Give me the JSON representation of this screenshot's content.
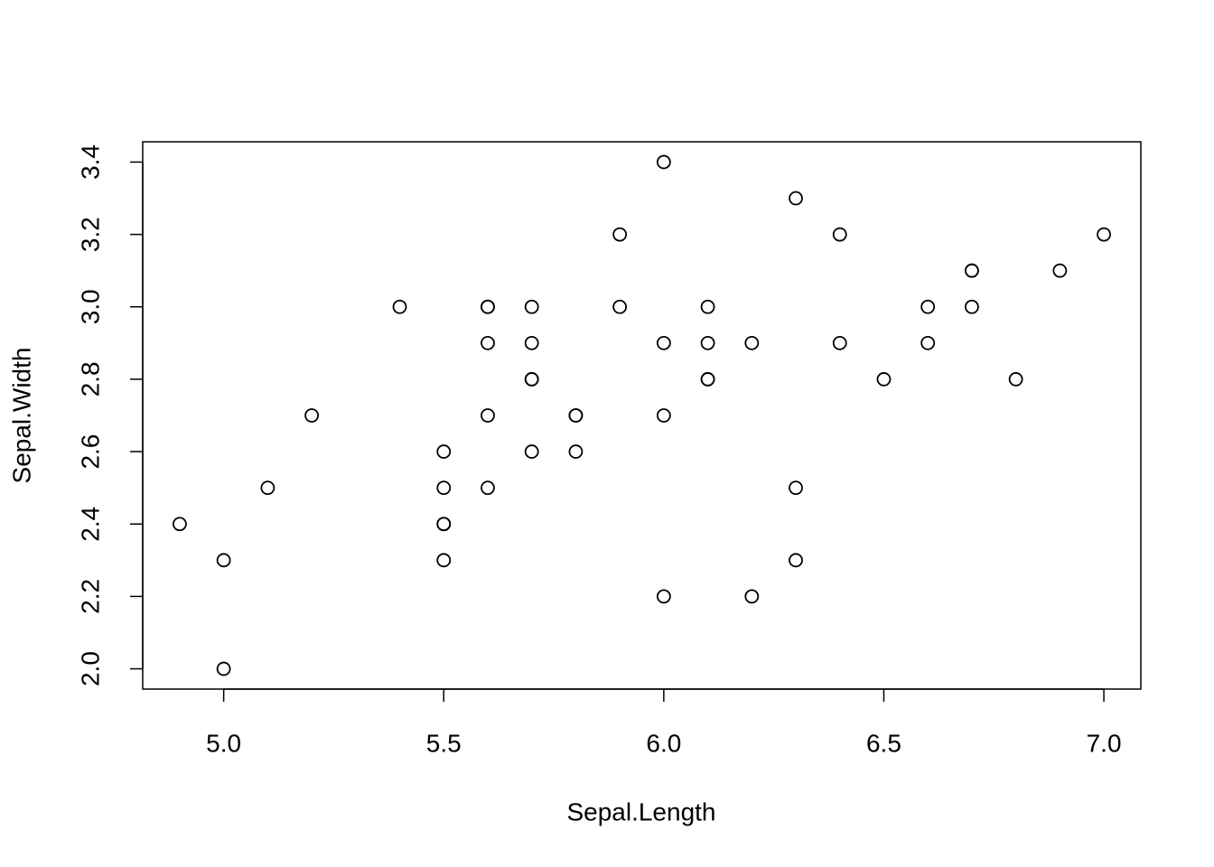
{
  "chart_data": {
    "type": "scatter",
    "x_label": "Sepal.Length",
    "y_label": "Sepal.Width",
    "x": [
      7.0,
      6.4,
      6.9,
      5.5,
      6.5,
      5.7,
      6.3,
      4.9,
      6.6,
      5.2,
      5.0,
      5.9,
      6.0,
      6.1,
      5.6,
      6.7,
      5.6,
      5.8,
      6.2,
      5.6,
      5.9,
      6.1,
      6.3,
      6.1,
      6.4,
      6.6,
      6.8,
      6.7,
      6.0,
      5.7,
      5.5,
      5.5,
      5.8,
      6.0,
      5.4,
      6.0,
      6.7,
      6.3,
      5.6,
      5.5,
      5.5,
      6.1,
      5.8,
      5.0,
      5.6,
      5.7,
      5.7,
      6.2,
      5.1,
      5.7
    ],
    "series": [
      {
        "name": "Sepal.Width",
        "color": "#000000",
        "values": [
          3.2,
          3.2,
          3.1,
          2.3,
          2.8,
          2.8,
          3.3,
          2.4,
          2.9,
          2.7,
          2.0,
          3.0,
          2.2,
          2.9,
          2.9,
          3.1,
          3.0,
          2.7,
          2.2,
          2.5,
          3.2,
          2.8,
          2.5,
          2.8,
          2.9,
          3.0,
          2.8,
          3.0,
          2.9,
          2.6,
          2.4,
          2.4,
          2.7,
          2.7,
          3.0,
          3.4,
          3.1,
          2.3,
          3.0,
          2.5,
          2.6,
          3.0,
          2.6,
          2.3,
          2.7,
          3.0,
          2.9,
          2.9,
          2.5,
          2.8
        ]
      }
    ],
    "xlim": [
      4.816,
      7.084
    ],
    "ylim": [
      1.944,
      3.456
    ],
    "xticks": [
      {
        "value": 5,
        "label": "5.0"
      },
      5.5,
      {
        "value": 6,
        "label": "6.0"
      },
      6.5,
      {
        "value": 7,
        "label": "7.0"
      }
    ],
    "yticks": [
      {
        "value": 2,
        "label": "2.0"
      },
      2.2,
      2.4,
      2.6,
      2.8,
      {
        "value": 3,
        "label": "3.0"
      },
      3.2,
      3.4
    ],
    "grid": false
  }
}
